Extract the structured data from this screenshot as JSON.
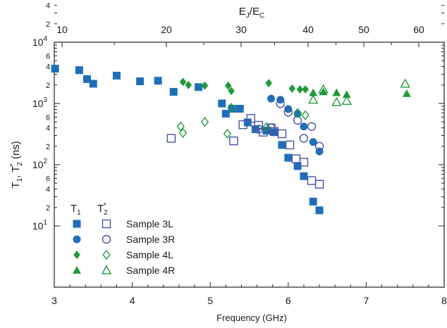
{
  "chart_data": {
    "type": "scatter",
    "x": {
      "label": "Frequency (GHz)",
      "range": [
        3,
        8
      ],
      "scale": "linear",
      "ticks": [
        3,
        4,
        5,
        6,
        7,
        8
      ],
      "tick_labels": [
        "3",
        "4",
        "5",
        "6",
        "7",
        "8"
      ]
    },
    "x_top": {
      "label": "E_J/E_C",
      "ticks": [
        10,
        20,
        30,
        40,
        50,
        60
      ],
      "tick_labels": [
        "10",
        "20",
        "30",
        "40",
        "50",
        "60"
      ]
    },
    "y": {
      "label": "T_1, T_2^* (ns)",
      "range": [
        10,
        10000
      ],
      "scale": "log",
      "major_ticks": [
        10,
        100,
        1000,
        10000
      ],
      "minor_tick_labels": [
        "2",
        "4",
        "6"
      ]
    },
    "legend": {
      "placement": "bottom-left",
      "header_t1": "T_1",
      "header_t2": "T_2^*",
      "entries": [
        "Sample 3L",
        "Sample 3R",
        "Sample 4L",
        "Sample 4R"
      ]
    },
    "colors": {
      "blue": "#1f6fb8",
      "navy_open": "#4a52a8",
      "green": "#1f9b3a"
    },
    "series": [
      {
        "name": "Sample 3L",
        "quantity": "T1",
        "marker": "square",
        "filled": true,
        "color": "#1f6fb8",
        "points": [
          [
            3.01,
            3700
          ],
          [
            3.32,
            3500
          ],
          [
            3.42,
            2500
          ],
          [
            3.5,
            2100
          ],
          [
            3.8,
            2850
          ],
          [
            4.1,
            2300
          ],
          [
            4.33,
            2350
          ],
          [
            4.53,
            1550
          ],
          [
            4.85,
            1850
          ],
          [
            5.15,
            1000
          ],
          [
            5.2,
            680
          ],
          [
            5.28,
            820
          ],
          [
            5.38,
            820
          ],
          [
            5.48,
            490
          ],
          [
            5.58,
            380
          ],
          [
            5.72,
            360
          ],
          [
            5.82,
            340
          ],
          [
            5.92,
            210
          ],
          [
            6.0,
            130
          ],
          [
            6.12,
            95
          ],
          [
            6.2,
            65
          ],
          [
            6.32,
            25
          ],
          [
            6.4,
            18
          ]
        ]
      },
      {
        "name": "Sample 3L",
        "quantity": "T2*",
        "marker": "square",
        "filled": false,
        "color": "#4a52a8",
        "points": [
          [
            4.5,
            270
          ],
          [
            5.3,
            245
          ],
          [
            5.42,
            450
          ],
          [
            5.52,
            570
          ],
          [
            5.62,
            440
          ],
          [
            5.68,
            340
          ],
          [
            5.78,
            400
          ],
          [
            5.82,
            350
          ],
          [
            5.92,
            320
          ],
          [
            6.02,
            210
          ],
          [
            6.1,
            125
          ],
          [
            6.2,
            110
          ],
          [
            6.3,
            55
          ],
          [
            6.4,
            48
          ]
        ]
      },
      {
        "name": "Sample 3R",
        "quantity": "T1",
        "marker": "circle",
        "filled": true,
        "color": "#1f6fb8",
        "points": [
          [
            5.78,
            1200
          ],
          [
            5.9,
            1150
          ],
          [
            6.0,
            810
          ],
          [
            6.12,
            680
          ],
          [
            6.2,
            420
          ],
          [
            6.32,
            235
          ],
          [
            6.4,
            165
          ]
        ]
      },
      {
        "name": "Sample 3R",
        "quantity": "T2*",
        "marker": "circle",
        "filled": false,
        "color": "#4a52a8",
        "points": [
          [
            5.62,
            380
          ],
          [
            5.78,
            400
          ],
          [
            5.9,
            990
          ],
          [
            6.0,
            720
          ],
          [
            6.12,
            530
          ],
          [
            6.2,
            270
          ],
          [
            6.3,
            420
          ],
          [
            6.4,
            200
          ]
        ]
      },
      {
        "name": "Sample 4L",
        "quantity": "T1",
        "marker": "diamond",
        "filled": true,
        "color": "#1f9b3a",
        "points": [
          [
            4.65,
            2250
          ],
          [
            4.72,
            2000
          ],
          [
            4.93,
            1950
          ],
          [
            5.23,
            1950
          ],
          [
            5.27,
            1600
          ],
          [
            5.75,
            2150
          ],
          [
            6.05,
            1750
          ],
          [
            6.15,
            1700
          ],
          [
            6.22,
            1700
          ]
        ]
      },
      {
        "name": "Sample 4L",
        "quantity": "T2*",
        "marker": "diamond",
        "filled": false,
        "color": "#1f9b3a",
        "points": [
          [
            4.62,
            420
          ],
          [
            4.65,
            330
          ],
          [
            4.93,
            500
          ],
          [
            5.22,
            320
          ],
          [
            5.27,
            850
          ],
          [
            5.72,
            410
          ],
          [
            6.12,
            700
          ],
          [
            6.22,
            640
          ]
        ]
      },
      {
        "name": "Sample 4R",
        "quantity": "T1",
        "marker": "triangle",
        "filled": true,
        "color": "#1f9b3a",
        "points": [
          [
            6.32,
            1500
          ],
          [
            6.45,
            1550
          ],
          [
            6.62,
            1500
          ],
          [
            6.75,
            1400
          ],
          [
            7.52,
            1450
          ]
        ]
      },
      {
        "name": "Sample 4R",
        "quantity": "T2*",
        "marker": "triangle",
        "filled": false,
        "color": "#1f9b3a",
        "points": [
          [
            6.32,
            1150
          ],
          [
            6.45,
            1700
          ],
          [
            6.62,
            1050
          ],
          [
            6.75,
            1100
          ],
          [
            7.5,
            2100
          ]
        ]
      }
    ]
  }
}
